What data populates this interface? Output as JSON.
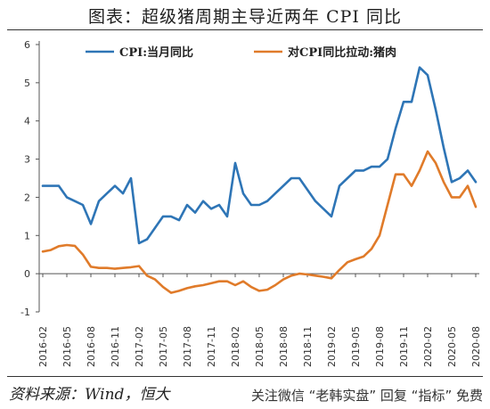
{
  "page": {
    "title": "图表：超级猪周期主导近两年 CPI 同比",
    "source": "资料来源：Wind，恒大",
    "watermark": "关注微信 “老韩实盘” 回复 “指标” 免费"
  },
  "chart_data": {
    "type": "line",
    "title": "图表：超级猪周期主导近两年 CPI 同比",
    "ylim": [
      -1,
      6
    ],
    "yticks": [
      "-1",
      "0",
      "1",
      "2",
      "3",
      "4",
      "5",
      "6"
    ],
    "x": [
      "2016-02",
      "2016-03",
      "2016-04",
      "2016-05",
      "2016-06",
      "2016-07",
      "2016-08",
      "2016-09",
      "2016-10",
      "2016-11",
      "2016-12",
      "2017-01",
      "2017-02",
      "2017-03",
      "2017-04",
      "2017-05",
      "2017-06",
      "2017-07",
      "2017-08",
      "2017-09",
      "2017-10",
      "2017-11",
      "2017-12",
      "2018-01",
      "2018-02",
      "2018-03",
      "2018-04",
      "2018-05",
      "2018-06",
      "2018-07",
      "2018-08",
      "2018-09",
      "2018-10",
      "2018-11",
      "2018-12",
      "2019-01",
      "2019-02",
      "2019-03",
      "2019-04",
      "2019-05",
      "2019-06",
      "2019-07",
      "2019-08",
      "2019-09",
      "2019-10",
      "2019-11",
      "2019-12",
      "2020-01",
      "2020-02",
      "2020-03",
      "2020-04",
      "2020-05",
      "2020-06",
      "2020-07",
      "2020-08"
    ],
    "xticks": [
      "2016-02",
      "2016-05",
      "2016-08",
      "2016-11",
      "2017-02",
      "2017-05",
      "2017-08",
      "2017-11",
      "2018-02",
      "2018-05",
      "2018-08",
      "2018-11",
      "2019-02",
      "2019-05",
      "2019-08",
      "2019-11",
      "2020-02",
      "2020-05",
      "2020-08"
    ],
    "legend_position": "top",
    "series": [
      {
        "name": "CPI:当月同比",
        "color": "#2E75B6",
        "values": [
          2.3,
          2.3,
          2.3,
          2.0,
          1.9,
          1.8,
          1.3,
          1.9,
          2.1,
          2.3,
          2.1,
          2.5,
          0.8,
          0.9,
          1.2,
          1.5,
          1.5,
          1.4,
          1.8,
          1.6,
          1.9,
          1.7,
          1.8,
          1.5,
          2.9,
          2.1,
          1.8,
          1.8,
          1.9,
          2.1,
          2.3,
          2.5,
          2.5,
          2.2,
          1.9,
          1.7,
          1.5,
          2.3,
          2.5,
          2.7,
          2.7,
          2.8,
          2.8,
          3.0,
          3.8,
          4.5,
          4.5,
          5.4,
          5.2,
          4.3,
          3.3,
          2.4,
          2.5,
          2.7,
          2.4
        ]
      },
      {
        "name": "对CPI同比拉动:猪肉",
        "color": "#E07B2A",
        "values": [
          0.58,
          0.62,
          0.72,
          0.75,
          0.73,
          0.5,
          0.18,
          0.15,
          0.15,
          0.13,
          0.15,
          0.17,
          0.2,
          -0.05,
          -0.15,
          -0.35,
          -0.5,
          -0.45,
          -0.38,
          -0.33,
          -0.3,
          -0.25,
          -0.2,
          -0.2,
          -0.3,
          -0.2,
          -0.35,
          -0.45,
          -0.42,
          -0.3,
          -0.15,
          -0.05,
          0.0,
          -0.02,
          -0.05,
          -0.08,
          -0.12,
          0.1,
          0.3,
          0.38,
          0.45,
          0.65,
          1.0,
          1.8,
          2.6,
          2.6,
          2.3,
          2.7,
          3.2,
          2.9,
          2.4,
          2.0,
          2.0,
          2.3,
          1.75
        ]
      }
    ]
  }
}
